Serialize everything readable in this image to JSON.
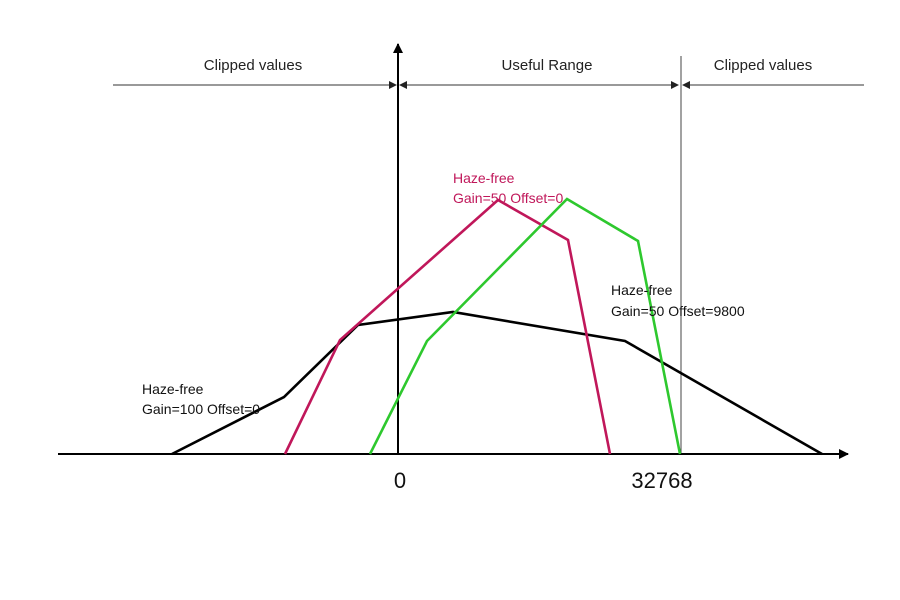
{
  "header": {
    "left_clipped": "Clipped values",
    "useful_range": "Useful Range",
    "right_clipped": "Clipped values"
  },
  "axis": {
    "tick_zero": "0",
    "tick_max": "32768"
  },
  "curves": [
    {
      "id": "gain100",
      "name": "Haze-free",
      "params": "Gain=100 Offset=0",
      "color": "#000000"
    },
    {
      "id": "gain50-offset0",
      "name": "Haze-free",
      "params": "Gain=50 Offset=0",
      "color": "#c0175a"
    },
    {
      "id": "gain50-offset9800",
      "name": "Haze-free",
      "params": "Gain=50 Offset=9800",
      "color": "#2ec82e"
    }
  ],
  "colors": {
    "axis": "#000000",
    "guide": "#333333"
  }
}
